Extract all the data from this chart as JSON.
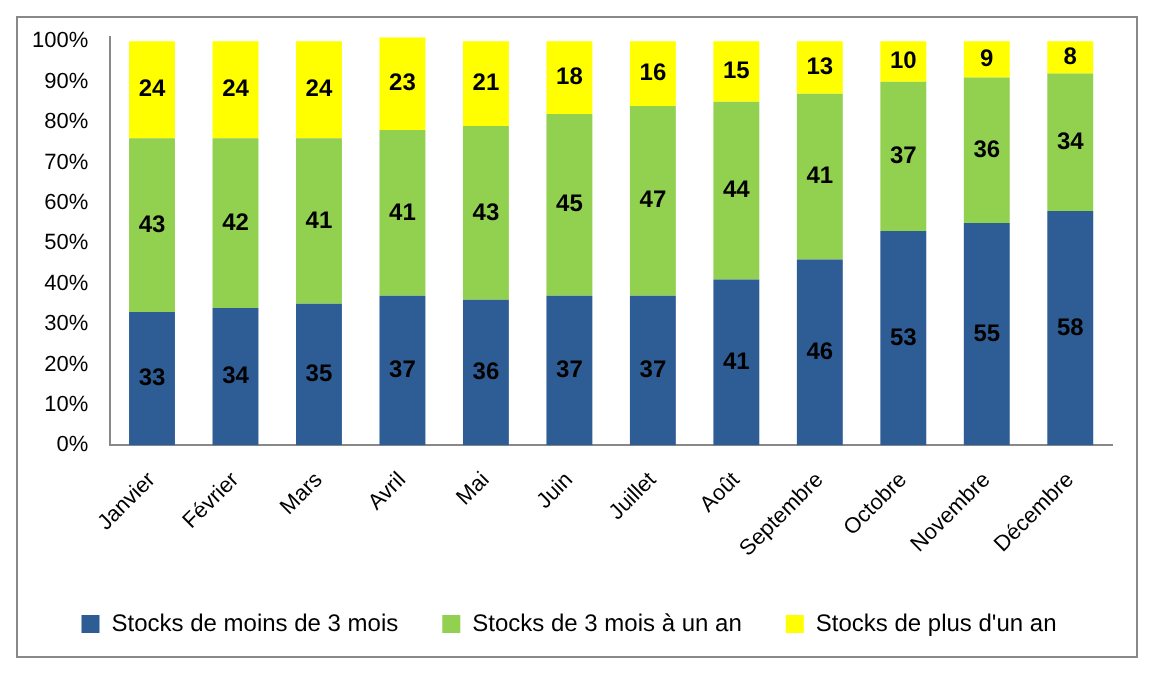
{
  "chart_data": {
    "type": "bar",
    "stacked": true,
    "categories": [
      "Janvier",
      "Février",
      "Mars",
      "Avril",
      "Mai",
      "Juin",
      "Juillet",
      "Août",
      "Septembre",
      "Octobre",
      "Novembre",
      "Décembre"
    ],
    "series": [
      {
        "name": "Stocks de moins de 3 mois",
        "color": "#2e5d96",
        "values": [
          33,
          34,
          35,
          37,
          36,
          37,
          37,
          41,
          46,
          53,
          55,
          58
        ]
      },
      {
        "name": "Stocks de 3 mois à un an",
        "color": "#92d050",
        "values": [
          43,
          42,
          41,
          41,
          43,
          45,
          47,
          44,
          41,
          37,
          36,
          34
        ]
      },
      {
        "name": "Stocks de plus d'un an",
        "color": "#ffff00",
        "values": [
          24,
          24,
          24,
          23,
          21,
          18,
          16,
          15,
          13,
          10,
          9,
          8
        ]
      }
    ],
    "ylim": [
      0,
      101
    ],
    "yticks": [
      {
        "value": 0,
        "label": "0%"
      },
      {
        "value": 10,
        "label": "10%"
      },
      {
        "value": 20,
        "label": "20%"
      },
      {
        "value": 30,
        "label": "30%"
      },
      {
        "value": 40,
        "label": "40%"
      },
      {
        "value": 50,
        "label": "50%"
      },
      {
        "value": 60,
        "label": "60%"
      },
      {
        "value": 70,
        "label": "70%"
      },
      {
        "value": 80,
        "label": "80%"
      },
      {
        "value": 90,
        "label": "90%"
      },
      {
        "value": 100,
        "label": "100%"
      }
    ],
    "grid": false,
    "legend": "bottom",
    "data_labels": true
  }
}
